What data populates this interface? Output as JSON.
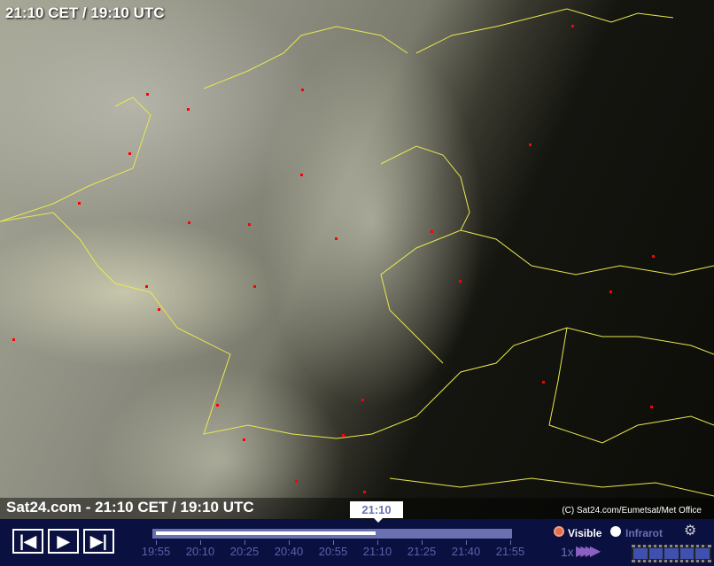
{
  "map": {
    "top_title": "21:10 CET / 19:10 UTC",
    "bottom_title": "Sat24.com - 21:10 CET / 19:10 UTC",
    "copyright": "(C) Sat24.com/Eumetsat/Met Office"
  },
  "player": {
    "current_time": "21:10",
    "progress_percent": 62,
    "times": [
      "19:55",
      "20:10",
      "20:25",
      "20:40",
      "20:55",
      "21:10",
      "21:25",
      "21:40",
      "21:55"
    ],
    "speed": "1x"
  },
  "layers": {
    "options": [
      "Visible",
      "Infrarot"
    ],
    "selected": "Visible"
  },
  "colors": {
    "bar": "#0a1040",
    "track": "#6a70b0",
    "borders": "#e8e850",
    "cities": "#ff0000"
  },
  "icons": [
    "first-frame-icon",
    "play-icon",
    "last-frame-icon",
    "settings-gears-icon",
    "fast-forward-icon",
    "filmstrip-icon"
  ]
}
